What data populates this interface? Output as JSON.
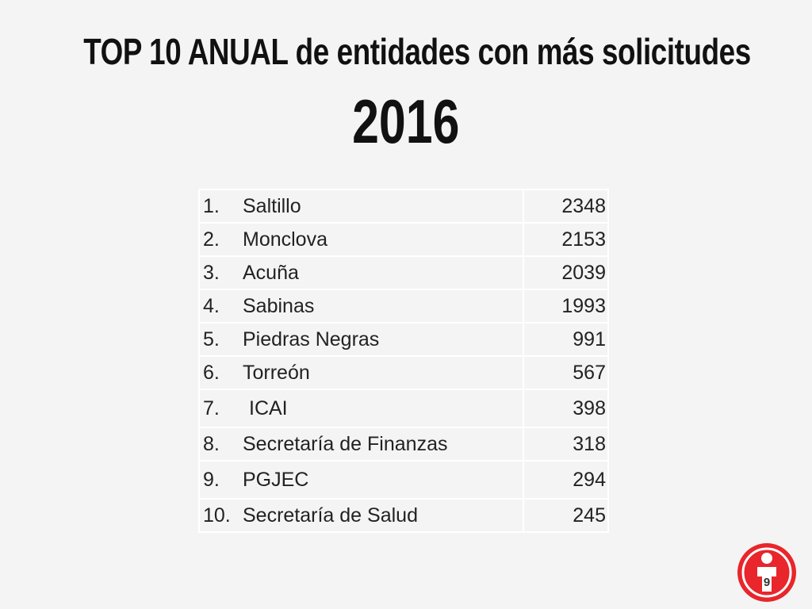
{
  "title": "TOP 10 ANUAL de entidades con más solicitudes",
  "year": "2016",
  "rows": [
    {
      "rank": "1.",
      "name": "Saltillo",
      "value": "2348"
    },
    {
      "rank": "2.",
      "name": "Monclova",
      "value": "2153"
    },
    {
      "rank": "3.",
      "name": "Acuña",
      "value": "2039"
    },
    {
      "rank": "4.",
      "name": "Sabinas",
      "value": "1993"
    },
    {
      "rank": "5.",
      "name": "Piedras Negras",
      "value": "991"
    },
    {
      "rank": "6.",
      "name": "Torreón",
      "value": "567"
    },
    {
      "rank": "7.",
      "name": "ICAI",
      "value": "398"
    },
    {
      "rank": "8.",
      "name": "Secretaría de Finanzas",
      "value": "318"
    },
    {
      "rank": "9.",
      "name": "PGJEC",
      "value": "294"
    },
    {
      "rank": "10.",
      "name": "Secretaría de Salud",
      "value": "245"
    }
  ],
  "page_number": "9",
  "colors": {
    "logo_red": "#e8262b",
    "logo_white": "#ffffff"
  }
}
